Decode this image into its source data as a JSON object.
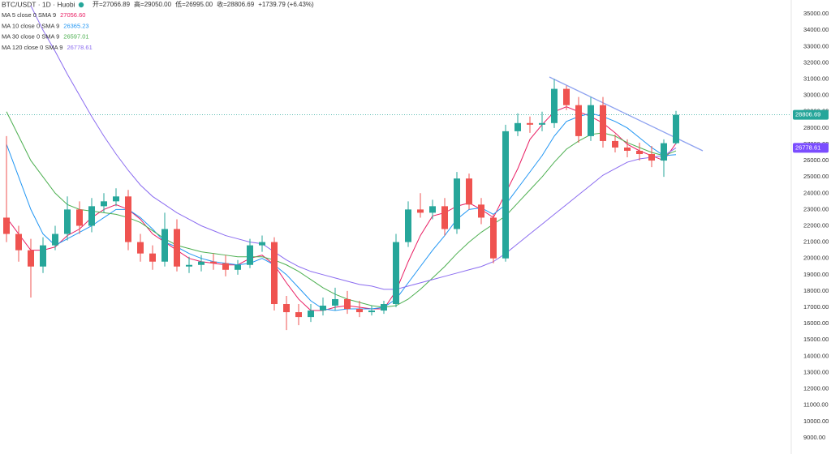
{
  "chart_data": {
    "type": "candlestick",
    "title": "BTC/USDT · 1D · Huobi",
    "ohlc_header": [
      "开=27066.89",
      "高=29050.00",
      "低=26995.00",
      "收=28806.69",
      "+1739.79 (+6.43%)"
    ],
    "up_color": "#26a69a",
    "down_color": "#ef5350",
    "open": [
      22500,
      21500,
      20500,
      19500,
      20800,
      21500,
      23000,
      22000,
      23200,
      23500,
      23800,
      21000,
      20300,
      19800,
      21800,
      19500,
      19600,
      19800,
      19700,
      19300,
      19600,
      20800,
      21000,
      17200,
      16700,
      16400,
      16800,
      17100,
      17500,
      16900,
      16700,
      16800,
      17200,
      21000,
      23000,
      22800,
      23200,
      21800,
      24900,
      23300,
      22500,
      20000,
      27800,
      28300,
      28200,
      28300,
      30400,
      29400,
      27500,
      29400,
      27200,
      26800,
      26600,
      26400,
      26000,
      27066.89
    ],
    "high": [
      27500,
      22000,
      21200,
      21300,
      22000,
      23800,
      23500,
      23700,
      24000,
      24300,
      24200,
      21500,
      20800,
      22800,
      22400,
      20100,
      20200,
      20300,
      20200,
      19900,
      21200,
      21400,
      21300,
      17700,
      17200,
      17200,
      17600,
      18200,
      18000,
      17400,
      17100,
      17400,
      21500,
      23500,
      24000,
      23600,
      23700,
      25300,
      25200,
      23700,
      22700,
      28200,
      28900,
      28700,
      29000,
      31000,
      30600,
      29900,
      29900,
      29900,
      27600,
      27300,
      27100,
      26900,
      27300,
      29050
    ],
    "low": [
      21000,
      19800,
      17600,
      19100,
      20500,
      21100,
      21500,
      21600,
      22800,
      23200,
      20500,
      19800,
      19300,
      19500,
      19200,
      19100,
      19200,
      19300,
      18900,
      19000,
      19400,
      20400,
      16800,
      15600,
      15900,
      16100,
      16500,
      16800,
      16600,
      16400,
      16500,
      16600,
      17000,
      20700,
      22500,
      22400,
      21400,
      21500,
      23000,
      22100,
      19700,
      19800,
      27500,
      27700,
      27800,
      28000,
      29100,
      27100,
      27200,
      26800,
      26500,
      26200,
      26000,
      25600,
      25000,
      26995
    ],
    "close": [
      21500,
      20500,
      19500,
      20800,
      21500,
      23000,
      22000,
      23200,
      23500,
      23800,
      21000,
      20300,
      19800,
      21800,
      19500,
      19600,
      19800,
      19700,
      19300,
      19600,
      20800,
      21000,
      17200,
      16700,
      16400,
      16800,
      17100,
      17500,
      16900,
      16700,
      16800,
      17200,
      21000,
      23000,
      22800,
      23200,
      21800,
      24900,
      23300,
      22500,
      20000,
      27800,
      28300,
      28200,
      28300,
      30400,
      29400,
      27500,
      29400,
      27200,
      26800,
      26600,
      26400,
      26000,
      27066.89,
      28806.69
    ],
    "series": [
      {
        "name": "MA 5 close 0 SMA 9",
        "color": "#e91e63",
        "legend_value": {
          "value": 27056.6,
          "label": "27056.60"
        },
        "values": [
          22500,
          21500,
          20500,
          20500,
          20700,
          21400,
          21800,
          22500,
          23000,
          23300,
          23000,
          22400,
          21500,
          21000,
          20500,
          20000,
          19800,
          19700,
          19600,
          19600,
          20000,
          20200,
          19600,
          18500,
          17500,
          16800,
          16800,
          17000,
          17100,
          17000,
          16900,
          16900,
          18000,
          19800,
          21400,
          22600,
          22800,
          23200,
          23400,
          23000,
          22500,
          24000,
          25500,
          27300,
          28200,
          29000,
          29300,
          29000,
          28700,
          28300,
          27700,
          27000,
          26600,
          26300,
          26000,
          27056.6
        ]
      },
      {
        "name": "MA 10 close 0 SMA 9",
        "color": "#2196f3",
        "legend_value": {
          "value": 26365.23,
          "label": "26365.23"
        },
        "values": [
          27000,
          25000,
          23000,
          21500,
          20800,
          21200,
          21600,
          22000,
          22500,
          23000,
          23000,
          22500,
          21800,
          21000,
          20700,
          20300,
          20000,
          19800,
          19700,
          19600,
          19700,
          20000,
          19600,
          19000,
          18200,
          17400,
          16900,
          16800,
          16900,
          16900,
          16900,
          17000,
          17500,
          18500,
          19500,
          20500,
          21400,
          22400,
          23000,
          23100,
          22700,
          23300,
          24300,
          25300,
          26300,
          27500,
          28400,
          28700,
          28900,
          28700,
          28400,
          28000,
          27400,
          26800,
          26300,
          26365.23
        ]
      },
      {
        "name": "MA 30 close 0 SMA 9",
        "color": "#4caf50",
        "legend_value": {
          "value": 26597.01,
          "label": "26597.01"
        },
        "values": [
          29000,
          27500,
          26000,
          25000,
          24000,
          23300,
          23000,
          22900,
          22800,
          22700,
          22500,
          22200,
          21700,
          21200,
          20800,
          20600,
          20400,
          20300,
          20200,
          20100,
          20100,
          20100,
          19900,
          19600,
          19200,
          18700,
          18200,
          17800,
          17500,
          17300,
          17100,
          17000,
          17100,
          17500,
          18100,
          18800,
          19500,
          20300,
          21000,
          21600,
          22100,
          22600,
          23400,
          24200,
          25000,
          25900,
          26700,
          27200,
          27600,
          27700,
          27500,
          27100,
          26800,
          26500,
          26300,
          26597.01
        ]
      },
      {
        "name": "MA 120 close 0 SMA 9",
        "color": "#8b6cf0",
        "legend_value": {
          "value": 26778.61,
          "label": "26778.61"
        },
        "values": [
          null,
          null,
          35500,
          34000,
          32700,
          31300,
          30000,
          28700,
          27500,
          26400,
          25400,
          24500,
          23800,
          23300,
          22800,
          22400,
          22000,
          21700,
          21400,
          21200,
          21000,
          20900,
          20400,
          19900,
          19500,
          19200,
          19000,
          18800,
          18600,
          18400,
          18300,
          18100,
          18100,
          18300,
          18500,
          18700,
          18900,
          19100,
          19300,
          19500,
          19800,
          20300,
          20900,
          21500,
          22100,
          22700,
          23300,
          23900,
          24500,
          25100,
          25500,
          25900,
          26100,
          26200,
          26300,
          26778.61
        ]
      }
    ],
    "price_labels": [
      {
        "value": 28806.69,
        "label": "28806.69",
        "color": "#26a69a"
      },
      {
        "value": 26778.61,
        "label": "26778.61",
        "color": "#7b4dff"
      }
    ],
    "ylim": [
      8000,
      35850
    ],
    "yticks": [
      {
        "value": 9000,
        "label": "9000.00"
      },
      {
        "value": 10000,
        "label": "10000.00"
      },
      {
        "value": 11000,
        "label": "11000.00"
      },
      {
        "value": 12000,
        "label": "12000.00"
      },
      {
        "value": 13000,
        "label": "13000.00"
      },
      {
        "value": 14000,
        "label": "14000.00"
      },
      {
        "value": 15000,
        "label": "15000.00"
      },
      {
        "value": 16000,
        "label": "16000.00"
      },
      {
        "value": 17000,
        "label": "17000.00"
      },
      {
        "value": 18000,
        "label": "18000.00"
      },
      {
        "value": 19000,
        "label": "19000.00"
      },
      {
        "value": 20000,
        "label": "20000.00"
      },
      {
        "value": 21000,
        "label": "21000.00"
      },
      {
        "value": 22000,
        "label": "22000.00"
      },
      {
        "value": 23000,
        "label": "23000.00"
      },
      {
        "value": 24000,
        "label": "24000.00"
      },
      {
        "value": 25000,
        "label": "25000.00"
      },
      {
        "value": 26000,
        "label": "26000.00"
      },
      {
        "value": 27000,
        "label": "27000.00"
      },
      {
        "value": 28000,
        "label": "28000.00"
      },
      {
        "value": 29000,
        "label": "29000.00"
      },
      {
        "value": 30000,
        "label": "30000.00"
      },
      {
        "value": 31000,
        "label": "31000.00"
      },
      {
        "value": 32000,
        "label": "32000.00"
      },
      {
        "value": 33000,
        "label": "33000.00"
      },
      {
        "value": 34000,
        "label": "34000.00"
      },
      {
        "value": 35000,
        "label": "35000.00"
      }
    ],
    "grid": false
  }
}
